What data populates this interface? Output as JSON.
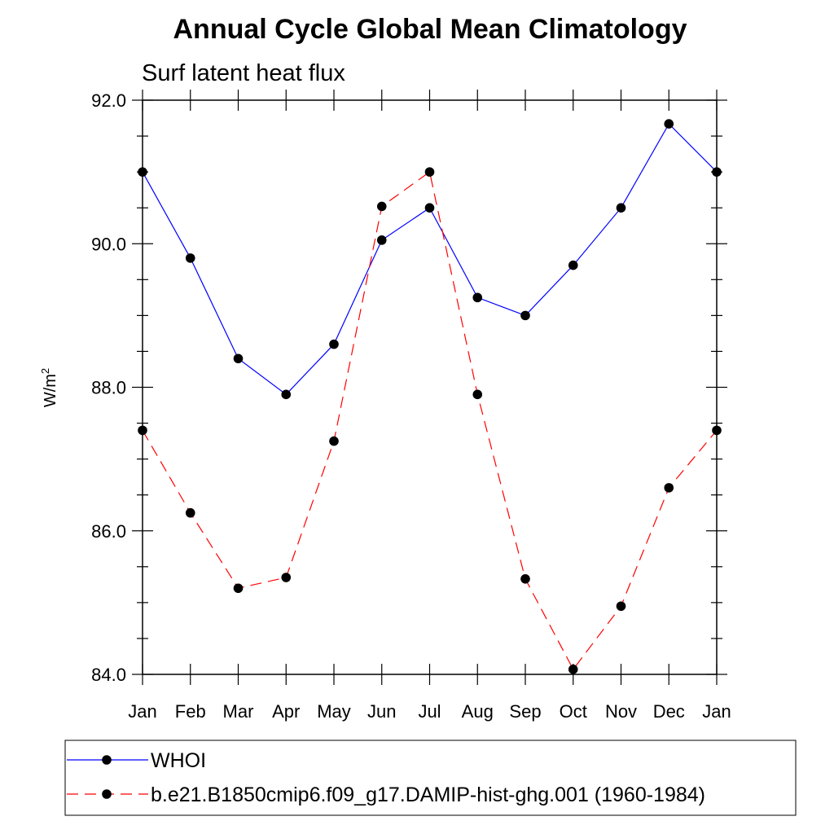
{
  "chart_data": {
    "type": "line",
    "title": "Annual Cycle Global Mean Climatology",
    "subtitle": "Surf latent heat flux",
    "ylabel_base": "W/m",
    "ylabel_sup": "2",
    "xlabel": "",
    "ylim": [
      84.0,
      92.0
    ],
    "yticks": [
      84.0,
      86.0,
      88.0,
      90.0,
      92.0
    ],
    "ytick_labels": [
      "84.0",
      "86.0",
      "88.0",
      "90.0",
      "92.0"
    ],
    "categories": [
      "Jan",
      "Feb",
      "Mar",
      "Apr",
      "May",
      "Jun",
      "Jul",
      "Aug",
      "Sep",
      "Oct",
      "Nov",
      "Dec",
      "Jan"
    ],
    "grid": false,
    "legend_position": "bottom",
    "series": [
      {
        "name": "WHOI",
        "color": "#0000ff",
        "dash": "solid",
        "values": [
          91.0,
          89.8,
          88.4,
          87.9,
          88.6,
          90.05,
          90.5,
          89.25,
          89.0,
          89.7,
          90.5,
          91.67,
          91.0
        ]
      },
      {
        "name": "b.e21.B1850cmip6.f09_g17.DAMIP-hist-ghg.001 (1960-1984)",
        "color": "#ff0000",
        "dash": "dashed",
        "values": [
          87.4,
          86.25,
          85.2,
          85.35,
          87.25,
          90.52,
          91.0,
          87.9,
          85.33,
          84.07,
          84.95,
          86.6,
          87.4
        ]
      }
    ]
  }
}
